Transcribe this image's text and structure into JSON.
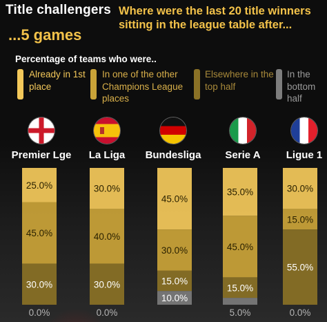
{
  "header": {
    "title": "Title challengers",
    "subtitle": "...5 games",
    "question": "Where were the last 20 title winners sitting in the league table after...",
    "legend_heading": "Percentage of teams who were.."
  },
  "colors": {
    "already_first": "#f3c85a",
    "champions_league": "#c9a338",
    "top_half": "#8a7126",
    "bottom_half": "#7d7d7d",
    "title": "#ffffff",
    "accent": "#f3c24a"
  },
  "legend": [
    {
      "label": "Already in 1st place",
      "color_key": "already_first",
      "text_color": "#f3c85a"
    },
    {
      "label": "In one of the other Champions League places",
      "color_key": "champions_league",
      "text_color": "#d9b04a"
    },
    {
      "label": "Elsewhere in the top half",
      "color_key": "top_half",
      "text_color": "#a8893a"
    },
    {
      "label": "In the bottom half",
      "color_key": "bottom_half",
      "text_color": "#9a9a9a"
    }
  ],
  "leagues": [
    {
      "name": "Premier Lge",
      "flag": "england-flag-icon"
    },
    {
      "name": "La Liga",
      "flag": "spain-flag-icon"
    },
    {
      "name": "Bundesliga",
      "flag": "germany-flag-icon"
    },
    {
      "name": "Serie A",
      "flag": "italy-flag-icon"
    },
    {
      "name": "Ligue 1",
      "flag": "france-flag-icon"
    }
  ],
  "chart_data": {
    "type": "bar",
    "stacked": true,
    "categories": [
      "Premier Lge",
      "La Liga",
      "Bundesliga",
      "Serie A",
      "Ligue 1"
    ],
    "series": [
      {
        "name": "Already in 1st place",
        "color_key": "already_first",
        "values": [
          25.0,
          30.0,
          45.0,
          35.0,
          30.0
        ],
        "labels": [
          "25.0%",
          "30.0%",
          "45.0%",
          "35.0%",
          "30.0%"
        ]
      },
      {
        "name": "In one of the other Champions League places",
        "color_key": "champions_league",
        "values": [
          45.0,
          40.0,
          30.0,
          45.0,
          15.0
        ],
        "labels": [
          "45.0%",
          "40.0%",
          "30.0%",
          "45.0%",
          "15.0%"
        ]
      },
      {
        "name": "Elsewhere in the top half",
        "color_key": "top_half",
        "values": [
          30.0,
          30.0,
          15.0,
          15.0,
          55.0
        ],
        "labels": [
          "30.0%",
          "30.0%",
          "15.0%",
          "15.0%",
          "55.0%"
        ]
      },
      {
        "name": "In the bottom half",
        "color_key": "bottom_half",
        "values": [
          0.0,
          0.0,
          10.0,
          5.0,
          0.0
        ],
        "labels": [
          "0.0%",
          "0.0%",
          "10.0%",
          "5.0%",
          "0.0%"
        ]
      }
    ],
    "ylim": [
      0,
      100
    ],
    "grid": false,
    "legend_position": "top"
  }
}
